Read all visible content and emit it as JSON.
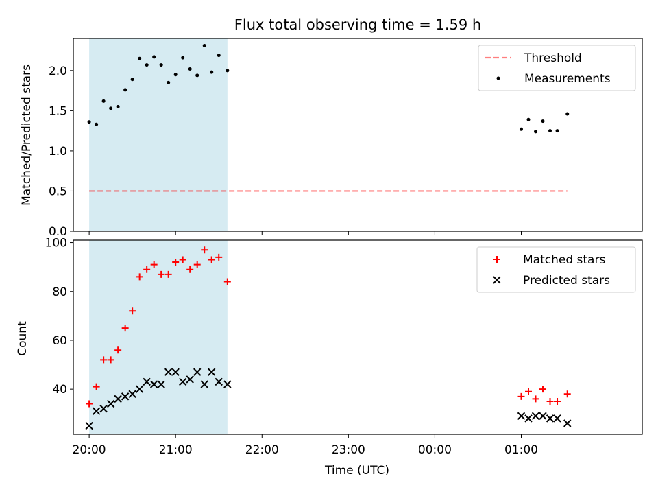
{
  "title": "Flux total observing time = 1.59 h",
  "colors": {
    "shade": "#add8e6",
    "threshold": "#ff0000",
    "measurement": "#000000",
    "matched": "#ff0000",
    "predicted": "#000000"
  },
  "chart_data": [
    {
      "type": "scatter",
      "panel": "top",
      "ylabel": "Matched/Predicted stars",
      "ylim": [
        0,
        2.4
      ],
      "yticks": [
        "0.0",
        "0.5",
        "1.0",
        "1.5",
        "2.0"
      ],
      "xlim": [
        "19:49",
        "02:24"
      ],
      "shaded_interval": [
        "20:00",
        "21:36"
      ],
      "legend": {
        "position": "top-right",
        "entries": [
          "Threshold",
          "Measurements"
        ]
      },
      "threshold": {
        "name": "Threshold",
        "value": 0.5,
        "x_range": [
          "20:00",
          "01:32"
        ]
      },
      "series": [
        {
          "name": "Measurements",
          "points": [
            [
              "20:00",
              1.36
            ],
            [
              "20:05",
              1.33
            ],
            [
              "20:10",
              1.62
            ],
            [
              "20:15",
              1.53
            ],
            [
              "20:20",
              1.55
            ],
            [
              "20:25",
              1.76
            ],
            [
              "20:30",
              1.89
            ],
            [
              "20:35",
              2.15
            ],
            [
              "20:40",
              2.07
            ],
            [
              "20:45",
              2.17
            ],
            [
              "20:50",
              2.07
            ],
            [
              "20:55",
              1.85
            ],
            [
              "21:00",
              1.95
            ],
            [
              "21:05",
              2.16
            ],
            [
              "21:10",
              2.02
            ],
            [
              "21:15",
              1.94
            ],
            [
              "21:20",
              2.31
            ],
            [
              "21:25",
              1.98
            ],
            [
              "21:30",
              2.19
            ],
            [
              "21:36",
              2.0
            ],
            [
              "01:00",
              1.27
            ],
            [
              "01:05",
              1.39
            ],
            [
              "01:10",
              1.24
            ],
            [
              "01:15",
              1.37
            ],
            [
              "01:20",
              1.25
            ],
            [
              "01:25",
              1.25
            ],
            [
              "01:32",
              1.46
            ]
          ]
        }
      ]
    },
    {
      "type": "scatter",
      "panel": "bottom",
      "xlabel": "Time (UTC)",
      "ylabel": "Count",
      "ylim": [
        21.5,
        101
      ],
      "yticks": [
        "40",
        "60",
        "80",
        "100"
      ],
      "xlim": [
        "19:49",
        "02:24"
      ],
      "xticks": [
        "20:00",
        "21:00",
        "22:00",
        "23:00",
        "00:00",
        "01:00"
      ],
      "shaded_interval": [
        "20:00",
        "21:36"
      ],
      "legend": {
        "position": "top-right",
        "entries": [
          "Matched stars",
          "Predicted stars"
        ]
      },
      "series": [
        {
          "name": "Matched stars",
          "marker": "+",
          "points": [
            [
              "20:00",
              34
            ],
            [
              "20:05",
              41
            ],
            [
              "20:10",
              52
            ],
            [
              "20:15",
              52
            ],
            [
              "20:20",
              56
            ],
            [
              "20:25",
              65
            ],
            [
              "20:30",
              72
            ],
            [
              "20:35",
              86
            ],
            [
              "20:40",
              89
            ],
            [
              "20:45",
              91
            ],
            [
              "20:50",
              87
            ],
            [
              "20:55",
              87
            ],
            [
              "21:00",
              92
            ],
            [
              "21:05",
              93
            ],
            [
              "21:10",
              89
            ],
            [
              "21:15",
              91
            ],
            [
              "21:20",
              97
            ],
            [
              "21:25",
              93
            ],
            [
              "21:30",
              94
            ],
            [
              "21:36",
              84
            ],
            [
              "01:00",
              37
            ],
            [
              "01:05",
              39
            ],
            [
              "01:10",
              36
            ],
            [
              "01:15",
              40
            ],
            [
              "01:20",
              35
            ],
            [
              "01:25",
              35
            ],
            [
              "01:32",
              38
            ]
          ]
        },
        {
          "name": "Predicted stars",
          "marker": "x",
          "points": [
            [
              "20:00",
              25
            ],
            [
              "20:05",
              31
            ],
            [
              "20:10",
              32
            ],
            [
              "20:15",
              34
            ],
            [
              "20:20",
              36
            ],
            [
              "20:25",
              37
            ],
            [
              "20:30",
              38
            ],
            [
              "20:35",
              40
            ],
            [
              "20:40",
              43
            ],
            [
              "20:45",
              42
            ],
            [
              "20:50",
              42
            ],
            [
              "20:55",
              47
            ],
            [
              "21:00",
              47
            ],
            [
              "21:05",
              43
            ],
            [
              "21:10",
              44
            ],
            [
              "21:15",
              47
            ],
            [
              "21:20",
              42
            ],
            [
              "21:25",
              47
            ],
            [
              "21:30",
              43
            ],
            [
              "21:36",
              42
            ],
            [
              "01:00",
              29
            ],
            [
              "01:05",
              28
            ],
            [
              "01:10",
              29
            ],
            [
              "01:15",
              29
            ],
            [
              "01:20",
              28
            ],
            [
              "01:25",
              28
            ],
            [
              "01:32",
              26
            ]
          ]
        }
      ]
    }
  ]
}
